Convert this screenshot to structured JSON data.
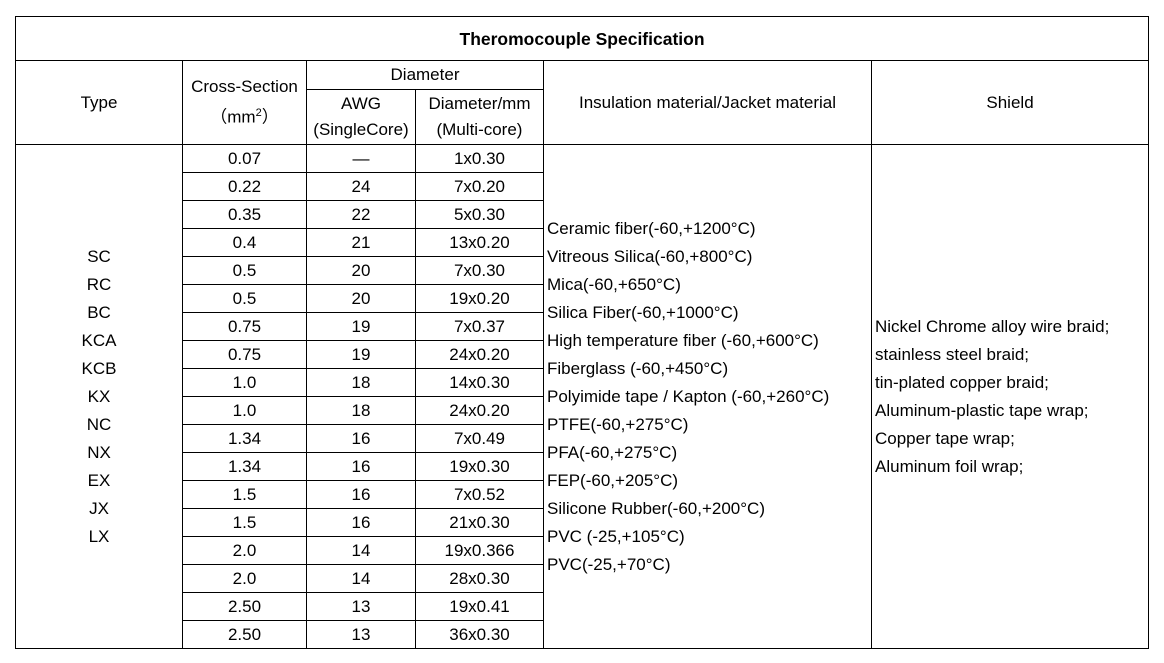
{
  "title": "Theromocouple Specification",
  "headers": {
    "type": "Type",
    "cross_section": "Cross-Section",
    "cross_unit_open": "（mm",
    "cross_unit_sup": "2",
    "cross_unit_close": "）",
    "diameter": "Diameter",
    "awg_line1": "AWG",
    "awg_line2": "(SingleCore)",
    "dia_line1": "Diameter/mm",
    "dia_line2": "(Multi-core)",
    "insulation": "Insulation material/Jacket material",
    "shield": "Shield"
  },
  "types": [
    "SC",
    "RC",
    "BC",
    "KCA",
    "KCB",
    "KX",
    "NC",
    "NX",
    "EX",
    "JX",
    "LX"
  ],
  "rows": [
    {
      "cross": "0.07",
      "awg": "—",
      "dia": "1x0.30"
    },
    {
      "cross": "0.22",
      "awg": "24",
      "dia": "7x0.20"
    },
    {
      "cross": "0.35",
      "awg": "22",
      "dia": "5x0.30"
    },
    {
      "cross": "0.4",
      "awg": "21",
      "dia": "13x0.20"
    },
    {
      "cross": "0.5",
      "awg": "20",
      "dia": "7x0.30"
    },
    {
      "cross": "0.5",
      "awg": "20",
      "dia": "19x0.20"
    },
    {
      "cross": "0.75",
      "awg": "19",
      "dia": "7x0.37"
    },
    {
      "cross": "0.75",
      "awg": "19",
      "dia": "24x0.20"
    },
    {
      "cross": "1.0",
      "awg": "18",
      "dia": "14x0.30"
    },
    {
      "cross": "1.0",
      "awg": "18",
      "dia": "24x0.20"
    },
    {
      "cross": "1.34",
      "awg": "16",
      "dia": "7x0.49"
    },
    {
      "cross": "1.34",
      "awg": "16",
      "dia": "19x0.30"
    },
    {
      "cross": "1.5",
      "awg": "16",
      "dia": "7x0.52"
    },
    {
      "cross": "1.5",
      "awg": "16",
      "dia": "21x0.30"
    },
    {
      "cross": "2.0",
      "awg": "14",
      "dia": "19x0.366"
    },
    {
      "cross": "2.0",
      "awg": "14",
      "dia": "28x0.30"
    },
    {
      "cross": "2.50",
      "awg": "13",
      "dia": "19x0.41"
    },
    {
      "cross": "2.50",
      "awg": "13",
      "dia": "36x0.30"
    }
  ],
  "insulation": [
    "Ceramic fiber(-60,+1200°C)",
    "Vitreous Silica(-60,+800°C)",
    "Mica(-60,+650°C)",
    "Silica Fiber(-60,+1000°C)",
    "High temperature fiber (-60,+600°C)",
    "Fiberglass (-60,+450°C)",
    "Polyimide tape / Kapton (-60,+260°C)",
    "PTFE(-60,+275°C)",
    "PFA(-60,+275°C)",
    "FEP(-60,+205°C)",
    "Silicone Rubber(-60,+200°C)",
    "PVC (-25,+105°C)",
    "PVC(-25,+70°C)"
  ],
  "shield": [
    "Nickel Chrome alloy wire braid;",
    "stainless steel braid;",
    "tin-plated copper braid;",
    "Aluminum-plastic tape wrap;",
    "Copper tape wrap;",
    "Aluminum foil wrap;"
  ]
}
